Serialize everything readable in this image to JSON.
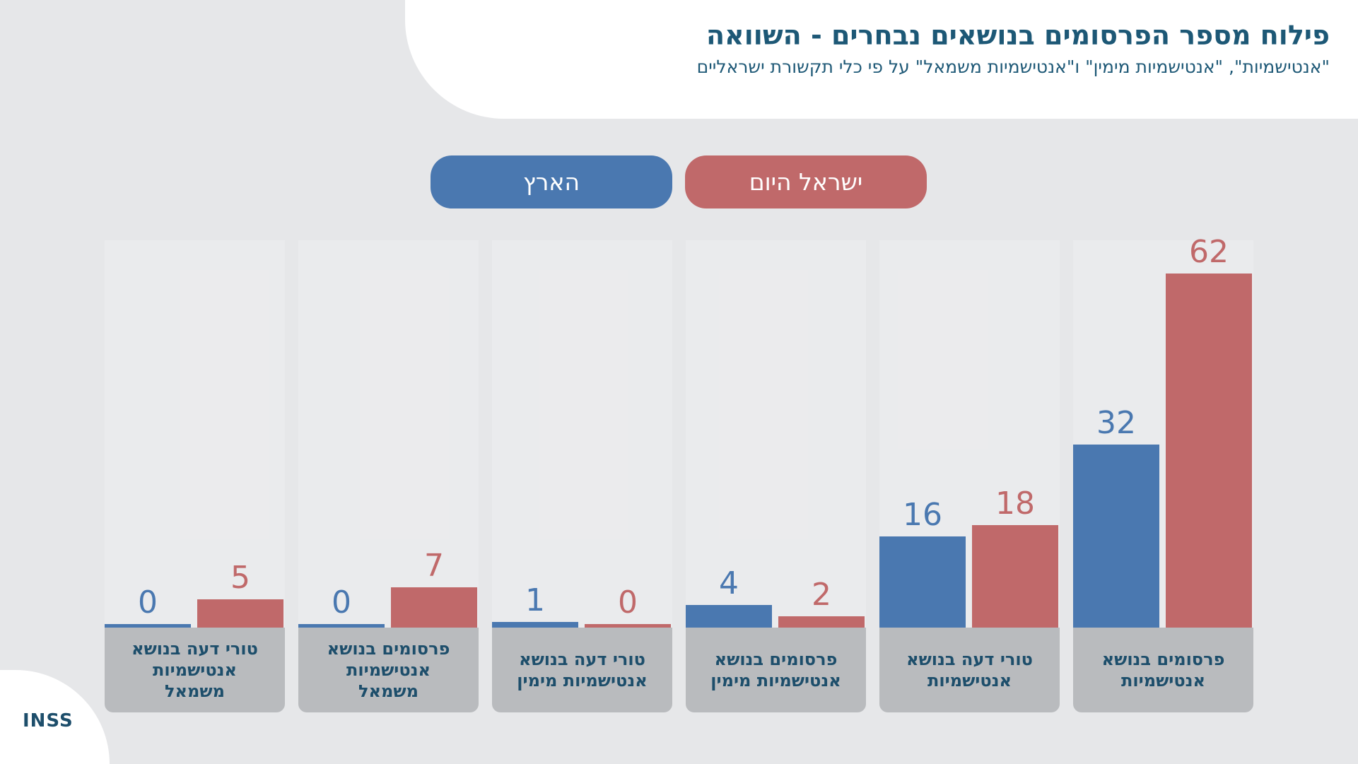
{
  "chart_data": {
    "type": "bar",
    "title": "פילוח מספר הפרסומים בנושאים נבחרים - השוואה",
    "subtitle": "\"אנטישמיות\", \"אנטישמיות מימין\" ו\"אנטישמיות משמאל\" על פי כלי תקשורת ישראליים",
    "categories": [
      "פרסומים בנושא אנטישמיות",
      "טורי דעה בנושא אנטישמיות",
      "פרסומים בנושא אנטישמיות מימין",
      "טורי דעה בנושא אנטישמיות מימין",
      "פרסומים בנושא אנטישמיות משמאל",
      "טורי דעה בנושא אנטישמיות משמאל"
    ],
    "series": [
      {
        "name": "הארץ",
        "color": "#4a78b0",
        "values": [
          32,
          16,
          4,
          1,
          0,
          0
        ]
      },
      {
        "name": "ישראל היום",
        "color": "#c0696a",
        "values": [
          62,
          18,
          2,
          0,
          7,
          5
        ]
      }
    ],
    "logo": "INSS"
  }
}
